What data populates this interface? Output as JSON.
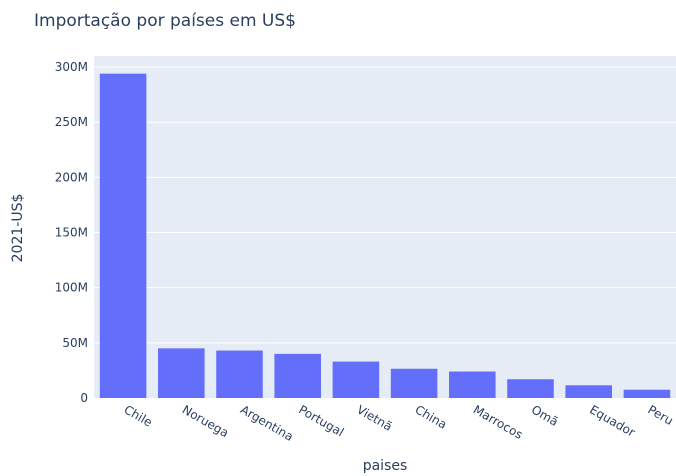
{
  "chart_data": {
    "type": "bar",
    "title": "Importação por países em US$",
    "xlabel": "paises",
    "ylabel": "2021-US$",
    "categories": [
      "Chile",
      "Noruega",
      "Argentina",
      "Portugal",
      "Vietnã",
      "China",
      "Marrocos",
      "Omã",
      "Equador",
      "Peru"
    ],
    "values": [
      294000000,
      45000000,
      43000000,
      40000000,
      33000000,
      26500000,
      24000000,
      17000000,
      11500000,
      7500000
    ],
    "ylim": [
      0,
      310000000
    ],
    "yticks": [
      0,
      50000000,
      100000000,
      150000000,
      200000000,
      250000000,
      300000000
    ],
    "ytick_labels": [
      "0",
      "50M",
      "100M",
      "150M",
      "200M",
      "250M",
      "300M"
    ],
    "grid": true,
    "colors": {
      "bar": "#636efa",
      "plot_background": "#e5ecf6",
      "grid": "#ffffff",
      "text": "#2a3f5f"
    }
  }
}
